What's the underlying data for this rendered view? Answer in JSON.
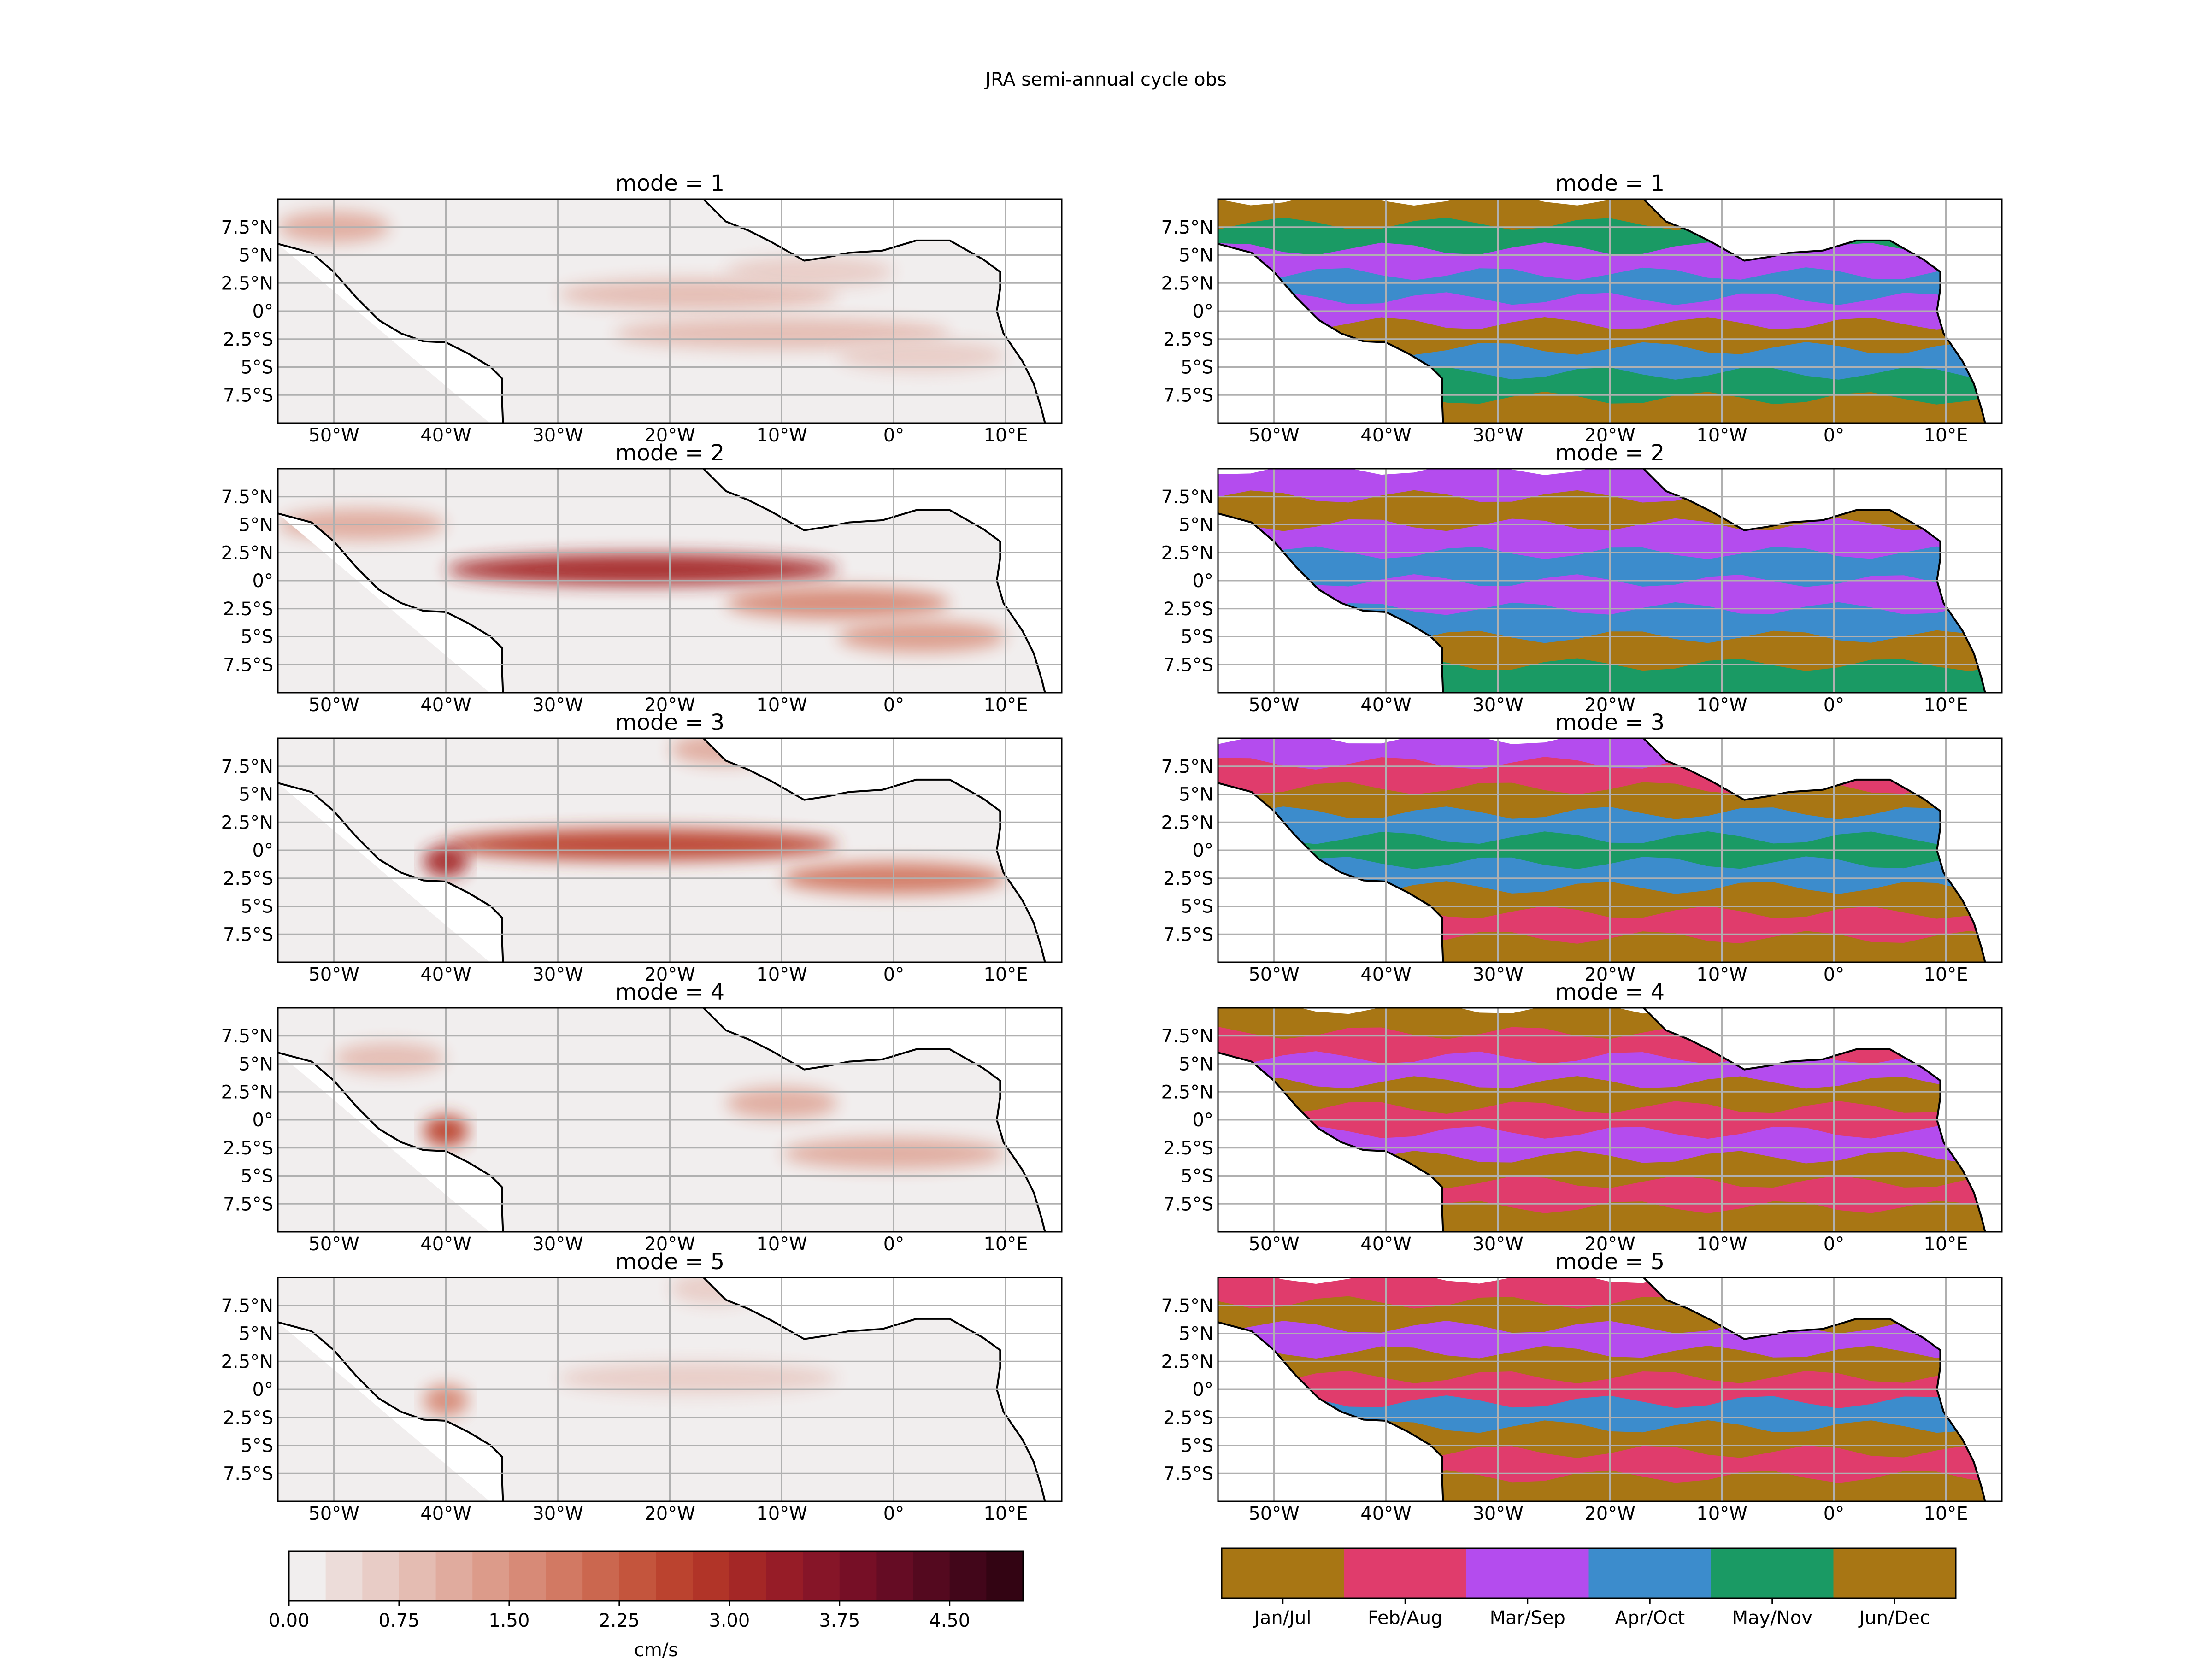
{
  "figure": {
    "title": "JRA semi-annual cycle obs"
  },
  "chart_data": [
    {
      "type": "heatmap",
      "panel": "amplitude",
      "subplot_titles": [
        "mode = 1",
        "mode = 2",
        "mode = 3",
        "mode = 4",
        "mode = 5"
      ],
      "map_extent": {
        "lon": [
          -55,
          15
        ],
        "lat": [
          -10,
          10
        ]
      },
      "xticks": [
        "50°W",
        "40°W",
        "30°W",
        "20°W",
        "10°W",
        "0°",
        "10°E"
      ],
      "yticks": [
        "7.5°N",
        "5°N",
        "2.5°N",
        "0°",
        "2.5°S",
        "5°S",
        "7.5°S"
      ],
      "grid": true,
      "colorbar": {
        "label": "cm/s",
        "levels": [
          0.0,
          0.25,
          0.5,
          0.75,
          1.0,
          1.25,
          1.5,
          1.75,
          2.0,
          2.25,
          2.5,
          2.75,
          3.0,
          3.25,
          3.5,
          3.75,
          4.0,
          4.25,
          4.5,
          4.75,
          5.0
        ],
        "tick_labels": [
          "0.00",
          "0.75",
          "1.50",
          "2.25",
          "3.00",
          "3.75",
          "4.50"
        ],
        "colors": [
          "#f1eeee",
          "#ecdcd9",
          "#e8ccc6",
          "#e4bcb2",
          "#e0ab9e",
          "#dc9b8a",
          "#d78a77",
          "#d27963",
          "#cb674f",
          "#c4553d",
          "#bb432f",
          "#b13428",
          "#a42726",
          "#961c27",
          "#861528",
          "#760f26",
          "#650c24",
          "#54091f",
          "#42061a",
          "#330413"
        ]
      },
      "modes": [
        {
          "mode": 1,
          "max_value": 1.6,
          "bands": [
            {
              "lat": 7.5,
              "lon": [
                -55,
                -45
              ],
              "value": 1.2
            },
            {
              "lat": 1.5,
              "lon": [
                -30,
                -5
              ],
              "value": 0.9
            },
            {
              "lat": -2.0,
              "lon": [
                -25,
                5
              ],
              "value": 0.8
            },
            {
              "lat": 3.5,
              "lon": [
                -15,
                0
              ],
              "value": 0.7
            },
            {
              "lat": -4.0,
              "lon": [
                -5,
                10
              ],
              "value": 0.6
            }
          ]
        },
        {
          "mode": 2,
          "max_value": 3.3,
          "bands": [
            {
              "lat": 1.0,
              "lon": [
                -40,
                -5
              ],
              "value": 3.2
            },
            {
              "lat": -2.0,
              "lon": [
                -15,
                5
              ],
              "value": 1.6
            },
            {
              "lat": -5.0,
              "lon": [
                -5,
                10
              ],
              "value": 1.3
            },
            {
              "lat": 5.0,
              "lon": [
                -55,
                -40
              ],
              "value": 1.0
            }
          ]
        },
        {
          "mode": 3,
          "max_value": 3.1,
          "bands": [
            {
              "lat": 0.5,
              "lon": [
                -40,
                -5
              ],
              "value": 2.6
            },
            {
              "lat": -2.5,
              "lon": [
                -10,
                10
              ],
              "value": 1.8
            },
            {
              "lat": -1.0,
              "lon": [
                -42,
                -38
              ],
              "value": 3.0
            },
            {
              "lat": 9.0,
              "lon": [
                -20,
                -10
              ],
              "value": 1.2
            }
          ]
        },
        {
          "mode": 4,
          "max_value": 2.8,
          "bands": [
            {
              "lat": 1.5,
              "lon": [
                -15,
                -5
              ],
              "value": 1.1
            },
            {
              "lat": -3.0,
              "lon": [
                -10,
                10
              ],
              "value": 1.0
            },
            {
              "lat": -1.0,
              "lon": [
                -42,
                -38
              ],
              "value": 2.7
            },
            {
              "lat": 5.5,
              "lon": [
                -50,
                -40
              ],
              "value": 0.8
            }
          ]
        },
        {
          "mode": 5,
          "max_value": 1.6,
          "bands": [
            {
              "lat": 1.0,
              "lon": [
                -30,
                -5
              ],
              "value": 0.7
            },
            {
              "lat": -1.0,
              "lon": [
                -42,
                -38
              ],
              "value": 1.5
            },
            {
              "lat": 9.0,
              "lon": [
                -20,
                -12
              ],
              "value": 0.6
            }
          ]
        }
      ]
    },
    {
      "type": "heatmap",
      "panel": "phase",
      "subplot_titles": [
        "mode = 1",
        "mode = 2",
        "mode = 3",
        "mode = 4",
        "mode = 5"
      ],
      "map_extent": {
        "lon": [
          -55,
          15
        ],
        "lat": [
          -10,
          10
        ]
      },
      "xticks": [
        "50°W",
        "40°W",
        "30°W",
        "20°W",
        "10°W",
        "0°",
        "10°E"
      ],
      "yticks": [
        "7.5°N",
        "5°N",
        "2.5°N",
        "0°",
        "2.5°S",
        "5°S",
        "7.5°S"
      ],
      "grid": true,
      "colorbar": {
        "categories": [
          "Jan/Jul",
          "Feb/Aug",
          "Mar/Sep",
          "Apr/Oct",
          "May/Nov",
          "Jun/Dec"
        ],
        "colors": [
          "#a87614",
          "#e03c6c",
          "#b44cee",
          "#3c8ccc",
          "#1a9a64",
          "#a87614"
        ]
      },
      "modes": [
        {
          "mode": 1,
          "band_order_north_to_south": [
            "Jan/Jul",
            "May/Nov",
            "Mar/Sep",
            "Apr/Oct",
            "Mar/Sep",
            "Jan/Jul",
            "Apr/Oct",
            "May/Nov",
            "Jan/Jul"
          ]
        },
        {
          "mode": 2,
          "band_order_north_to_south": [
            "Mar/Sep",
            "Jan/Jul",
            "Mar/Sep",
            "Apr/Oct",
            "Mar/Sep",
            "Apr/Oct",
            "Jan/Jul",
            "May/Nov"
          ]
        },
        {
          "mode": 3,
          "band_order_north_to_south": [
            "Mar/Sep",
            "Feb/Aug",
            "Jan/Jul",
            "Apr/Oct",
            "May/Nov",
            "Apr/Oct",
            "Jan/Jul",
            "Feb/Aug",
            "Jan/Jul"
          ]
        },
        {
          "mode": 4,
          "band_order_north_to_south": [
            "Jan/Jul",
            "Feb/Aug",
            "Mar/Sep",
            "Jan/Jul",
            "Feb/Aug",
            "Mar/Sep",
            "Jan/Jul",
            "Feb/Aug",
            "Jan/Jul"
          ]
        },
        {
          "mode": 5,
          "band_order_north_to_south": [
            "Feb/Aug",
            "Jan/Jul",
            "Mar/Sep",
            "Jan/Jul",
            "Feb/Aug",
            "Apr/Oct",
            "Jan/Jul",
            "Feb/Aug",
            "Jan/Jul"
          ]
        }
      ]
    }
  ],
  "colors": {
    "land": "#ffffff",
    "coastline": "#000000",
    "grid": "#b0b0b0"
  }
}
